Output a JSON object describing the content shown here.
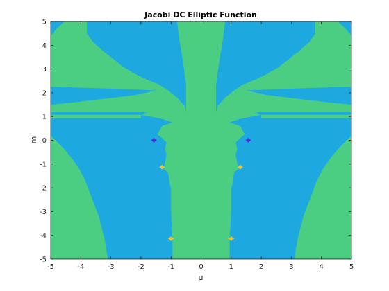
{
  "chart_data": {
    "type": "heatmap",
    "title": "Jacobi DC Elliptic Function",
    "xlabel": "u",
    "ylabel": "m",
    "xlim": [
      -5,
      5
    ],
    "ylim": [
      -5,
      5
    ],
    "xticks": [
      -5,
      -4,
      -3,
      -2,
      -1,
      0,
      1,
      2,
      3,
      4,
      5
    ],
    "yticks": [
      -5,
      -4,
      -3,
      -2,
      -1,
      0,
      1,
      2,
      3,
      4,
      5
    ],
    "grid": false,
    "legend": "none",
    "colors": {
      "low_region": "#1ea8e0",
      "high_region": "#4cce82",
      "pole_marker": "#3b34d6",
      "zero_marker": "#f2c230"
    },
    "regions": {
      "high": [
        {
          "name": "upper-left-band",
          "polygon": [
            [
              -5,
              2.25
            ],
            [
              -5,
              4.4
            ],
            [
              -4.8,
              4.7
            ],
            [
              -4.55,
              5
            ],
            [
              -3.8,
              5
            ],
            [
              -3.8,
              4.5
            ],
            [
              -3.6,
              4.15
            ],
            [
              -3.3,
              3.8
            ],
            [
              -3.0,
              3.5
            ],
            [
              -2.6,
              3.1
            ],
            [
              -2.2,
              2.8
            ],
            [
              -1.8,
              2.55
            ],
            [
              -1.4,
              2.35
            ],
            [
              -1.1,
              2.1
            ],
            [
              -0.8,
              1.8
            ],
            [
              -0.55,
              1.45
            ],
            [
              -0.5,
              1.18
            ],
            [
              -5,
              1.18
            ],
            [
              -5,
              1.5
            ],
            [
              -4.2,
              1.6
            ],
            [
              -3.2,
              1.75
            ],
            [
              -2.2,
              1.9
            ],
            [
              -1.5,
              2.1
            ],
            [
              -2.5,
              2.15
            ],
            [
              -3.6,
              2.2
            ]
          ]
        },
        {
          "name": "upper-right-band",
          "polygon": [
            [
              5,
              2.25
            ],
            [
              5,
              4.4
            ],
            [
              4.8,
              4.7
            ],
            [
              4.55,
              5
            ],
            [
              3.8,
              5
            ],
            [
              3.8,
              4.5
            ],
            [
              3.6,
              4.15
            ],
            [
              3.3,
              3.8
            ],
            [
              3.0,
              3.5
            ],
            [
              2.6,
              3.1
            ],
            [
              2.2,
              2.8
            ],
            [
              1.8,
              2.55
            ],
            [
              1.4,
              2.35
            ],
            [
              1.1,
              2.1
            ],
            [
              0.8,
              1.8
            ],
            [
              0.55,
              1.45
            ],
            [
              0.5,
              1.18
            ],
            [
              5,
              1.18
            ],
            [
              5,
              1.5
            ],
            [
              4.2,
              1.6
            ],
            [
              3.2,
              1.75
            ],
            [
              2.2,
              1.9
            ],
            [
              1.5,
              2.1
            ],
            [
              2.5,
              2.15
            ],
            [
              3.6,
              2.2
            ]
          ]
        },
        {
          "name": "center-column",
          "polygon": [
            [
              -0.8,
              5
            ],
            [
              0.8,
              5
            ],
            [
              0.72,
              4.2
            ],
            [
              0.6,
              3.3
            ],
            [
              0.5,
              2.3
            ],
            [
              0.5,
              1.18
            ],
            [
              1.8,
              1.18
            ],
            [
              2.0,
              1.08
            ],
            [
              1.3,
              0.9
            ],
            [
              0.95,
              0.75
            ],
            [
              1.3,
              0.6
            ],
            [
              1.45,
              0.25
            ],
            [
              1.3,
              0.1
            ],
            [
              1.15,
              -0.1
            ],
            [
              1.2,
              -0.35
            ],
            [
              1.15,
              -0.6
            ],
            [
              1.2,
              -0.95
            ],
            [
              1.25,
              -1.2
            ],
            [
              1.1,
              -1.35
            ],
            [
              1.05,
              -1.75
            ],
            [
              1.0,
              -2.1
            ],
            [
              1.0,
              -2.9
            ],
            [
              0.98,
              -3.6
            ],
            [
              0.95,
              -4.1
            ],
            [
              0.95,
              -5
            ],
            [
              -0.95,
              -5
            ],
            [
              -0.95,
              -4.1
            ],
            [
              -0.98,
              -3.6
            ],
            [
              -1.0,
              -2.9
            ],
            [
              -1.0,
              -2.1
            ],
            [
              -1.05,
              -1.75
            ],
            [
              -1.1,
              -1.35
            ],
            [
              -1.25,
              -1.2
            ],
            [
              -1.2,
              -0.95
            ],
            [
              -1.15,
              -0.6
            ],
            [
              -1.2,
              -0.35
            ],
            [
              -1.15,
              -0.1
            ],
            [
              -1.3,
              0.1
            ],
            [
              -1.45,
              0.25
            ],
            [
              -1.3,
              0.6
            ],
            [
              -0.95,
              0.75
            ],
            [
              -1.3,
              0.9
            ],
            [
              -2.0,
              1.08
            ],
            [
              -1.8,
              1.18
            ],
            [
              -0.5,
              1.18
            ],
            [
              -0.5,
              2.3
            ],
            [
              -0.6,
              3.3
            ],
            [
              -0.72,
              4.2
            ]
          ]
        },
        {
          "name": "left-strip",
          "polygon": [
            [
              -5,
              1.07
            ],
            [
              -5,
              0.93
            ],
            [
              -2.0,
              0.93
            ],
            [
              -2.0,
              1.07
            ]
          ]
        },
        {
          "name": "right-strip",
          "polygon": [
            [
              5,
              1.07
            ],
            [
              5,
              0.93
            ],
            [
              2.0,
              0.93
            ],
            [
              2.0,
              1.07
            ]
          ]
        },
        {
          "name": "lower-left-lobe",
          "polygon": [
            [
              -5,
              -5
            ],
            [
              -5,
              0.2
            ],
            [
              -4.6,
              -0.3
            ],
            [
              -4.3,
              -0.75
            ],
            [
              -4.05,
              -1.2
            ],
            [
              -3.85,
              -1.7
            ],
            [
              -3.7,
              -2.2
            ],
            [
              -3.55,
              -2.7
            ],
            [
              -3.4,
              -3.2
            ],
            [
              -3.3,
              -3.7
            ],
            [
              -3.2,
              -4.2
            ],
            [
              -3.15,
              -4.6
            ],
            [
              -3.1,
              -5
            ]
          ]
        },
        {
          "name": "lower-right-lobe",
          "polygon": [
            [
              5,
              -5
            ],
            [
              5,
              0.2
            ],
            [
              4.6,
              -0.3
            ],
            [
              4.3,
              -0.75
            ],
            [
              4.05,
              -1.2
            ],
            [
              3.85,
              -1.7
            ],
            [
              3.7,
              -2.2
            ],
            [
              3.55,
              -2.7
            ],
            [
              3.4,
              -3.2
            ],
            [
              3.3,
              -3.7
            ],
            [
              3.2,
              -4.2
            ],
            [
              3.15,
              -4.6
            ],
            [
              3.1,
              -5
            ]
          ]
        }
      ]
    },
    "markers": {
      "poles": [
        [
          -1.57,
          0
        ],
        [
          1.57,
          0
        ]
      ],
      "zeros": [
        [
          -1.3,
          -1.13
        ],
        [
          1.3,
          -1.13
        ],
        [
          -1.0,
          -4.14
        ],
        [
          1.0,
          -4.14
        ]
      ]
    }
  }
}
